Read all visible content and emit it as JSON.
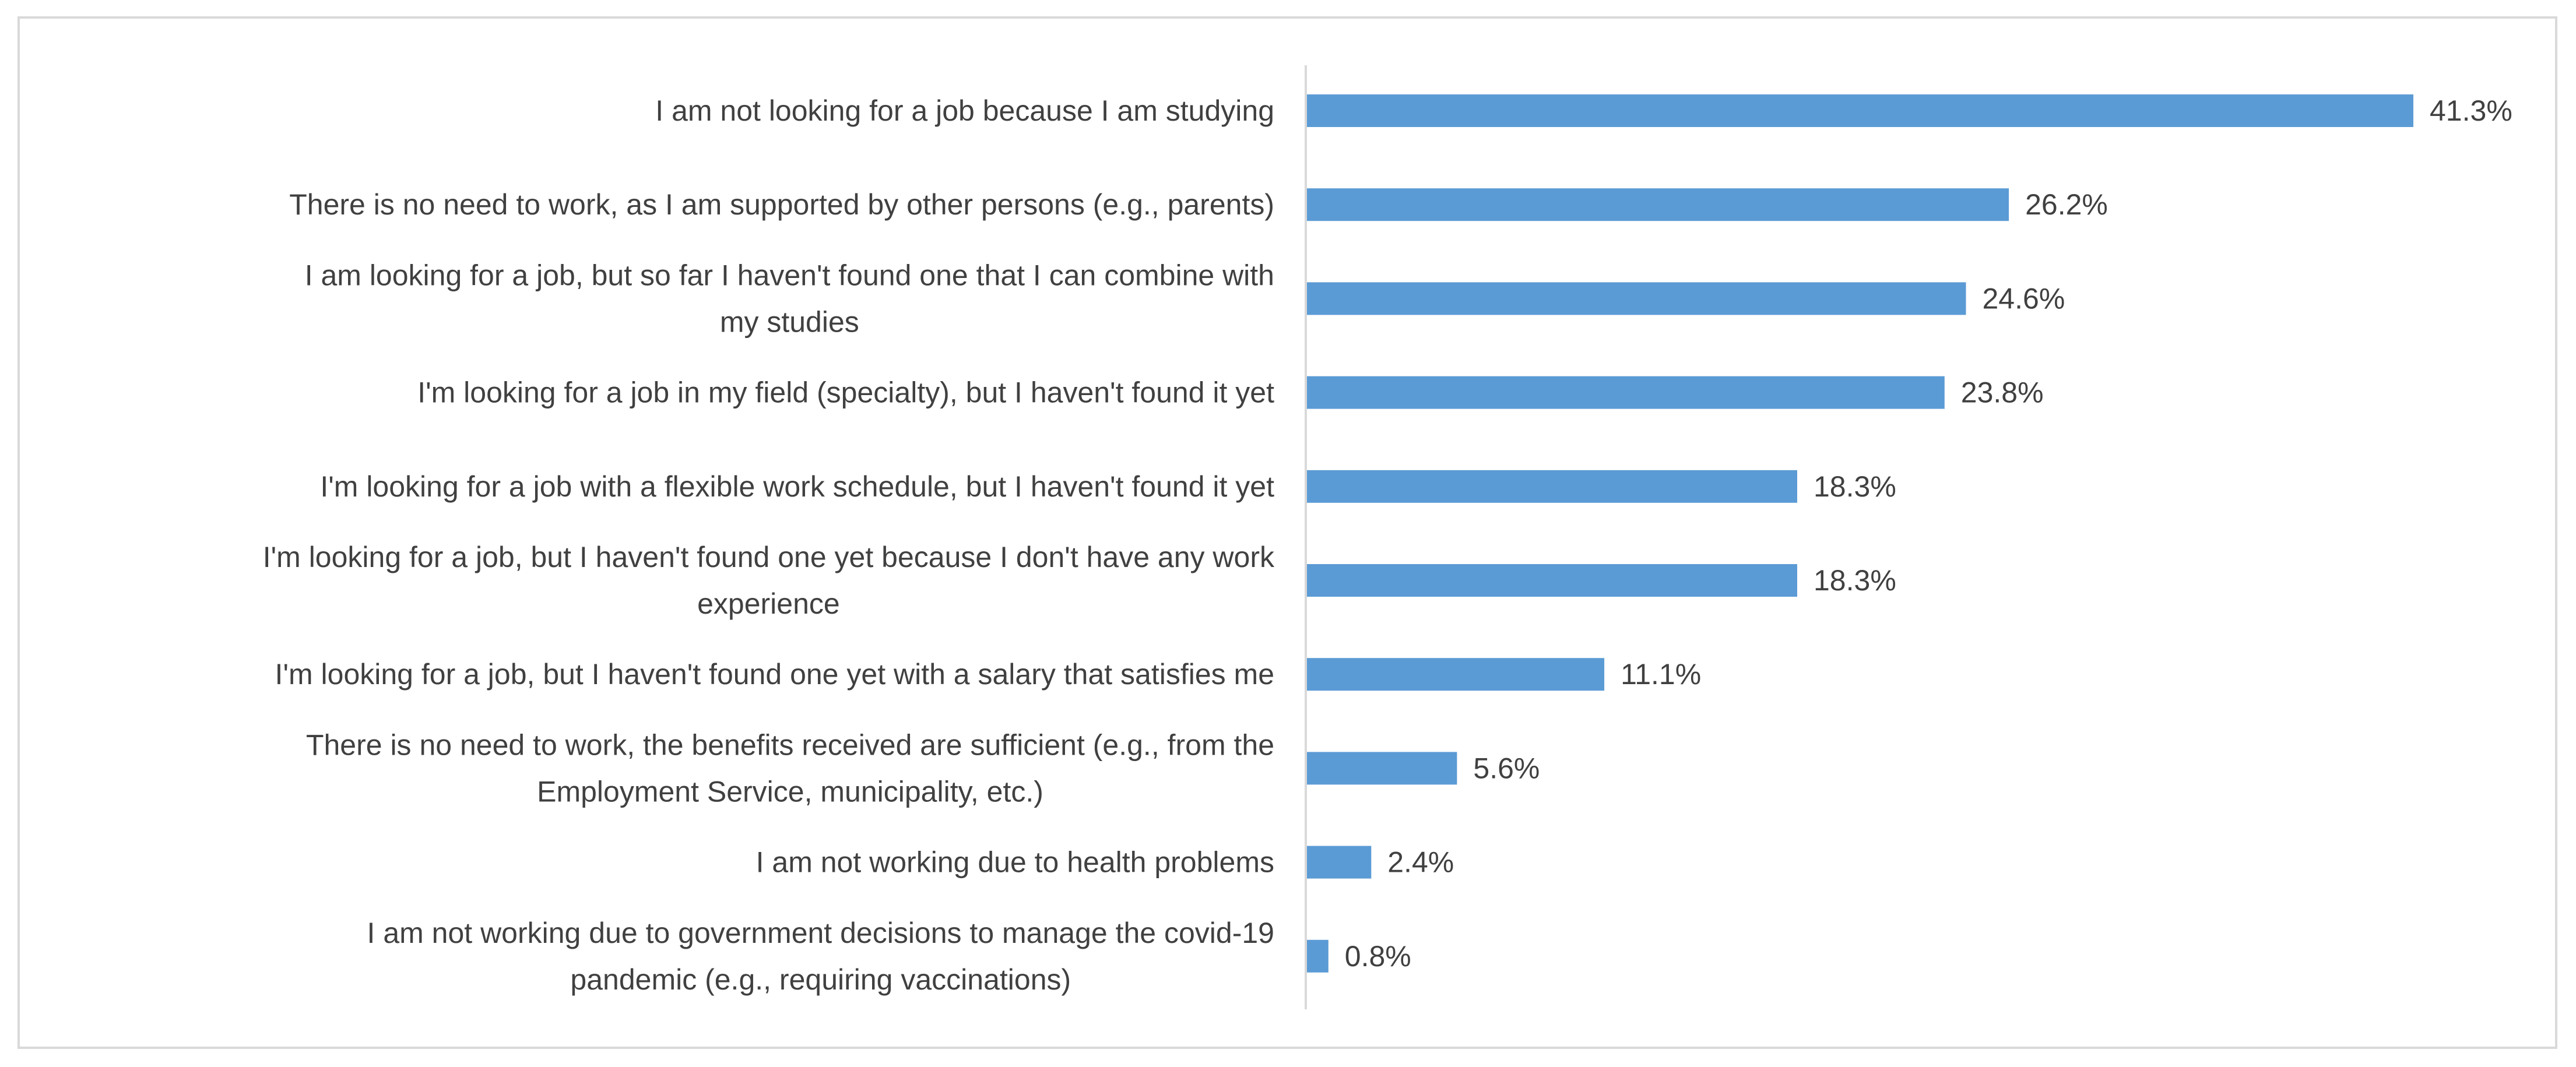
{
  "chart_data": {
    "type": "bar",
    "orientation": "horizontal",
    "title": "",
    "xlabel": "",
    "ylabel": "",
    "grid": false,
    "legend": "none",
    "bar_color": "#5b9bd5",
    "label_color": "#404040",
    "axis_color": "#d9d9d9",
    "xlim": [
      0,
      41.3
    ],
    "categories": [
      [
        "I am not looking for a job because I am studying"
      ],
      [
        "There is no need to work, as I am supported by other persons (e.g., parents)"
      ],
      [
        "I am looking for a job, but so far I haven't found one that I can combine with",
        "my studies"
      ],
      [
        "I'm looking for a job in my field (specialty), but I haven't found it yet"
      ],
      [
        "I'm looking for a job with a flexible work schedule, but I haven't found it yet"
      ],
      [
        "I'm looking for a job, but I haven't found one yet because I don't have any work",
        "experience"
      ],
      [
        "I'm looking for a job, but I haven't found one yet with a salary that satisfies me"
      ],
      [
        "There is no need to work, the benefits received are sufficient (e.g., from the",
        "Employment Service, municipality, etc.)"
      ],
      [
        "I am not working due to health problems"
      ],
      [
        "I am not working due to government decisions to manage the covid-19",
        "pandemic (e.g., requiring vaccinations)"
      ]
    ],
    "values": [
      41.3,
      26.2,
      24.6,
      23.8,
      18.3,
      18.3,
      11.1,
      5.6,
      2.4,
      0.8
    ],
    "value_labels": [
      "41.3%",
      "26.2%",
      "24.6%",
      "23.8%",
      "18.3%",
      "18.3%",
      "11.1%",
      "5.6%",
      "2.4%",
      "0.8%"
    ]
  }
}
